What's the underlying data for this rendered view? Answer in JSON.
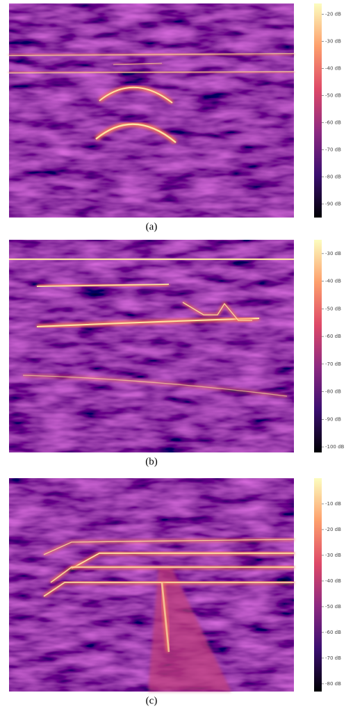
{
  "chart_data": [
    {
      "type": "spectrogram",
      "title": "(a)",
      "ylim": [
        -95,
        -16
      ],
      "yticks": [
        {
          "value": -20,
          "label": "-20 dB"
        },
        {
          "value": -30,
          "label": "-30 dB"
        },
        {
          "value": -40,
          "label": "-40 dB"
        },
        {
          "value": -50,
          "label": "-50 dB"
        },
        {
          "value": -60,
          "label": "-60 dB"
        },
        {
          "value": -70,
          "label": "-70 dB"
        },
        {
          "value": -80,
          "label": "-80 dB"
        },
        {
          "value": -90,
          "label": "-90 dB"
        }
      ]
    },
    {
      "type": "spectrogram",
      "title": "(b)",
      "ylim": [
        -102,
        -25
      ],
      "yticks": [
        {
          "value": -30,
          "label": "-30 dB"
        },
        {
          "value": -40,
          "label": "-40 dB"
        },
        {
          "value": -50,
          "label": "-50 dB"
        },
        {
          "value": -60,
          "label": "-60 dB"
        },
        {
          "value": -70,
          "label": "-70 dB"
        },
        {
          "value": -80,
          "label": "-80 dB"
        },
        {
          "value": -90,
          "label": "-90 dB"
        },
        {
          "value": -100,
          "label": "-100 dB"
        }
      ]
    },
    {
      "type": "spectrogram",
      "title": "(c)",
      "ylim": [
        -83,
        0
      ],
      "yticks": [
        {
          "value": -10,
          "label": "-10 dB"
        },
        {
          "value": -20,
          "label": "-20 dB"
        },
        {
          "value": -30,
          "label": "-30 dB"
        },
        {
          "value": -40,
          "label": "-40 dB"
        },
        {
          "value": -50,
          "label": "-50 dB"
        },
        {
          "value": -60,
          "label": "-60 dB"
        },
        {
          "value": -70,
          "label": "-70 dB"
        },
        {
          "value": -80,
          "label": "-80 dB"
        }
      ]
    }
  ]
}
